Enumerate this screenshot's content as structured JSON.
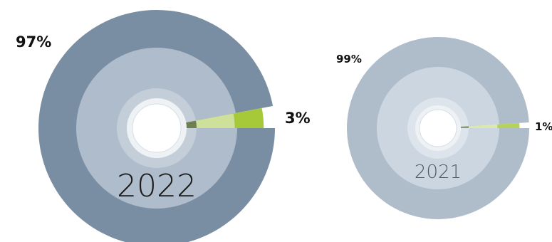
{
  "chart_data": [
    {
      "type": "pie",
      "label": "2022",
      "slices": [
        {
          "label": "97%",
          "value": 97
        },
        {
          "label": "3%",
          "value": 3
        }
      ],
      "colors": {
        "major_outer": "#7a8ea3",
        "major_middle": "#aebccb",
        "major_inner": "#c4ced9",
        "minor_outer": "#a6c93a",
        "minor_middle": "#cfe09a",
        "minor_inner": "#6e7f52",
        "year_text": "#1a1a1a"
      }
    },
    {
      "type": "pie",
      "label": "2021",
      "slices": [
        {
          "label": "99%",
          "value": 99
        },
        {
          "label": "1%",
          "value": 1
        }
      ],
      "colors": {
        "major_outer": "#afbcca",
        "major_middle": "#ccd6e0",
        "major_inner": "#dde4eb",
        "minor_outer": "#b5d35a",
        "minor_middle": "#dbe9b0",
        "minor_inner": "#8a9a6a",
        "year_text": "#505a66"
      }
    }
  ]
}
